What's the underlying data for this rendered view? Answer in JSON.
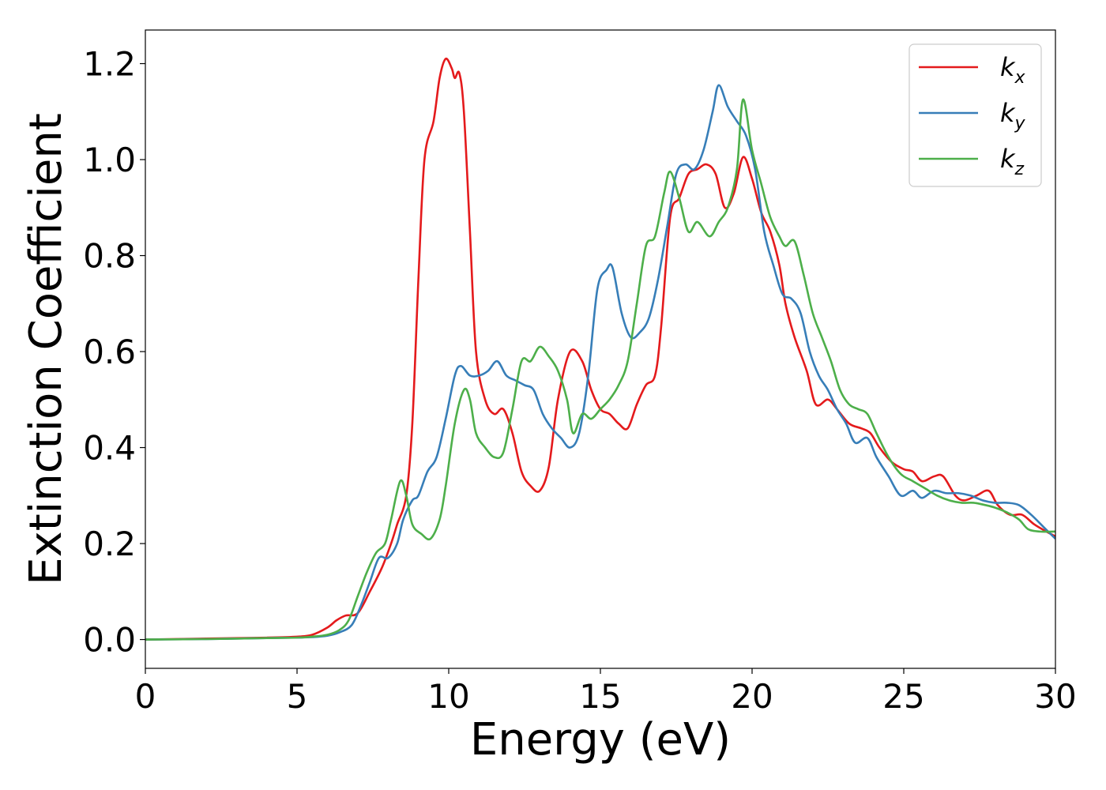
{
  "chart_data": {
    "type": "line",
    "xlabel": "Energy (eV)",
    "ylabel": "Extinction Coefficient",
    "xlim": [
      0,
      30
    ],
    "ylim": [
      -0.06,
      1.27
    ],
    "x_ticks": [
      0,
      5,
      10,
      15,
      20,
      25,
      30
    ],
    "y_ticks": [
      0.0,
      0.2,
      0.4,
      0.6,
      0.8,
      1.0,
      1.2
    ],
    "x_tick_labels": [
      "0",
      "5",
      "10",
      "15",
      "20",
      "25",
      "30"
    ],
    "y_tick_labels": [
      "0.0",
      "0.2",
      "0.4",
      "0.6",
      "0.8",
      "1.0",
      "1.2"
    ],
    "grid": false,
    "legend_position": "top-right",
    "series": [
      {
        "name": "k",
        "subscript": "x",
        "color": "#e41a1c",
        "points": [
          [
            0,
            0
          ],
          [
            2,
            0.002
          ],
          [
            4,
            0.004
          ],
          [
            5,
            0.006
          ],
          [
            5.5,
            0.01
          ],
          [
            6,
            0.025
          ],
          [
            6.3,
            0.04
          ],
          [
            6.6,
            0.05
          ],
          [
            7,
            0.055
          ],
          [
            7.4,
            0.1
          ],
          [
            7.8,
            0.15
          ],
          [
            8.1,
            0.2
          ],
          [
            8.3,
            0.24
          ],
          [
            8.6,
            0.3
          ],
          [
            8.8,
            0.45
          ],
          [
            9.0,
            0.75
          ],
          [
            9.2,
            1.0
          ],
          [
            9.5,
            1.08
          ],
          [
            9.7,
            1.17
          ],
          [
            9.9,
            1.21
          ],
          [
            10.1,
            1.19
          ],
          [
            10.2,
            1.17
          ],
          [
            10.35,
            1.18
          ],
          [
            10.5,
            1.1
          ],
          [
            10.7,
            0.85
          ],
          [
            10.9,
            0.6
          ],
          [
            11.2,
            0.5
          ],
          [
            11.5,
            0.47
          ],
          [
            11.8,
            0.48
          ],
          [
            12.1,
            0.43
          ],
          [
            12.4,
            0.35
          ],
          [
            12.7,
            0.32
          ],
          [
            13.0,
            0.31
          ],
          [
            13.3,
            0.36
          ],
          [
            13.6,
            0.5
          ],
          [
            14.0,
            0.6
          ],
          [
            14.4,
            0.58
          ],
          [
            14.7,
            0.52
          ],
          [
            15.0,
            0.48
          ],
          [
            15.3,
            0.47
          ],
          [
            15.6,
            0.45
          ],
          [
            15.9,
            0.44
          ],
          [
            16.2,
            0.49
          ],
          [
            16.5,
            0.53
          ],
          [
            16.8,
            0.55
          ],
          [
            17.0,
            0.65
          ],
          [
            17.3,
            0.88
          ],
          [
            17.6,
            0.92
          ],
          [
            17.9,
            0.97
          ],
          [
            18.2,
            0.98
          ],
          [
            18.5,
            0.99
          ],
          [
            18.8,
            0.97
          ],
          [
            19.1,
            0.9
          ],
          [
            19.4,
            0.93
          ],
          [
            19.7,
            1.005
          ],
          [
            20.0,
            0.96
          ],
          [
            20.3,
            0.89
          ],
          [
            20.6,
            0.85
          ],
          [
            20.9,
            0.78
          ],
          [
            21.1,
            0.7
          ],
          [
            21.4,
            0.63
          ],
          [
            21.8,
            0.56
          ],
          [
            22.1,
            0.49
          ],
          [
            22.5,
            0.5
          ],
          [
            22.8,
            0.48
          ],
          [
            23.2,
            0.45
          ],
          [
            23.6,
            0.44
          ],
          [
            23.9,
            0.43
          ],
          [
            24.2,
            0.4
          ],
          [
            24.6,
            0.37
          ],
          [
            25.0,
            0.355
          ],
          [
            25.3,
            0.35
          ],
          [
            25.6,
            0.33
          ],
          [
            26.0,
            0.34
          ],
          [
            26.3,
            0.34
          ],
          [
            26.7,
            0.3
          ],
          [
            27.0,
            0.29
          ],
          [
            27.4,
            0.3
          ],
          [
            27.8,
            0.31
          ],
          [
            28.1,
            0.28
          ],
          [
            28.5,
            0.26
          ],
          [
            28.9,
            0.26
          ],
          [
            29.3,
            0.24
          ],
          [
            29.7,
            0.225
          ],
          [
            30,
            0.215
          ]
        ]
      },
      {
        "name": "k",
        "subscript": "y",
        "color": "#377eb8",
        "points": [
          [
            0,
            0
          ],
          [
            2,
            0.001
          ],
          [
            4,
            0.003
          ],
          [
            5,
            0.004
          ],
          [
            5.5,
            0.005
          ],
          [
            6,
            0.008
          ],
          [
            6.4,
            0.015
          ],
          [
            6.8,
            0.03
          ],
          [
            7.1,
            0.07
          ],
          [
            7.4,
            0.12
          ],
          [
            7.7,
            0.17
          ],
          [
            8.0,
            0.17
          ],
          [
            8.3,
            0.2
          ],
          [
            8.5,
            0.25
          ],
          [
            8.8,
            0.29
          ],
          [
            9.0,
            0.3
          ],
          [
            9.3,
            0.35
          ],
          [
            9.6,
            0.38
          ],
          [
            9.9,
            0.46
          ],
          [
            10.2,
            0.55
          ],
          [
            10.4,
            0.57
          ],
          [
            10.7,
            0.55
          ],
          [
            11.0,
            0.55
          ],
          [
            11.3,
            0.56
          ],
          [
            11.6,
            0.58
          ],
          [
            11.9,
            0.55
          ],
          [
            12.2,
            0.54
          ],
          [
            12.5,
            0.53
          ],
          [
            12.8,
            0.52
          ],
          [
            13.1,
            0.47
          ],
          [
            13.4,
            0.44
          ],
          [
            13.7,
            0.42
          ],
          [
            14.0,
            0.4
          ],
          [
            14.3,
            0.43
          ],
          [
            14.6,
            0.55
          ],
          [
            14.9,
            0.73
          ],
          [
            15.2,
            0.77
          ],
          [
            15.4,
            0.775
          ],
          [
            15.7,
            0.68
          ],
          [
            16.0,
            0.63
          ],
          [
            16.3,
            0.64
          ],
          [
            16.6,
            0.67
          ],
          [
            16.9,
            0.75
          ],
          [
            17.2,
            0.86
          ],
          [
            17.5,
            0.97
          ],
          [
            17.8,
            0.99
          ],
          [
            18.1,
            0.98
          ],
          [
            18.4,
            1.02
          ],
          [
            18.7,
            1.1
          ],
          [
            18.9,
            1.155
          ],
          [
            19.2,
            1.11
          ],
          [
            19.5,
            1.08
          ],
          [
            19.8,
            1.05
          ],
          [
            20.1,
            0.98
          ],
          [
            20.4,
            0.85
          ],
          [
            20.7,
            0.78
          ],
          [
            21.0,
            0.72
          ],
          [
            21.3,
            0.71
          ],
          [
            21.6,
            0.68
          ],
          [
            21.9,
            0.6
          ],
          [
            22.2,
            0.55
          ],
          [
            22.5,
            0.52
          ],
          [
            22.8,
            0.48
          ],
          [
            23.1,
            0.45
          ],
          [
            23.4,
            0.41
          ],
          [
            23.8,
            0.42
          ],
          [
            24.1,
            0.38
          ],
          [
            24.5,
            0.34
          ],
          [
            24.9,
            0.3
          ],
          [
            25.3,
            0.31
          ],
          [
            25.6,
            0.295
          ],
          [
            26.0,
            0.31
          ],
          [
            26.4,
            0.305
          ],
          [
            26.8,
            0.305
          ],
          [
            27.2,
            0.3
          ],
          [
            27.6,
            0.29
          ],
          [
            28.0,
            0.285
          ],
          [
            28.4,
            0.285
          ],
          [
            28.8,
            0.28
          ],
          [
            29.2,
            0.26
          ],
          [
            29.6,
            0.235
          ],
          [
            30,
            0.21
          ]
        ]
      },
      {
        "name": "k",
        "subscript": "z",
        "color": "#4daf4a",
        "points": [
          [
            0,
            0
          ],
          [
            2,
            0.001
          ],
          [
            4,
            0.003
          ],
          [
            5,
            0.004
          ],
          [
            5.5,
            0.006
          ],
          [
            6,
            0.01
          ],
          [
            6.4,
            0.02
          ],
          [
            6.7,
            0.04
          ],
          [
            7.0,
            0.09
          ],
          [
            7.3,
            0.14
          ],
          [
            7.6,
            0.18
          ],
          [
            7.9,
            0.2
          ],
          [
            8.1,
            0.25
          ],
          [
            8.4,
            0.33
          ],
          [
            8.6,
            0.3
          ],
          [
            8.8,
            0.24
          ],
          [
            9.1,
            0.22
          ],
          [
            9.4,
            0.21
          ],
          [
            9.7,
            0.25
          ],
          [
            9.9,
            0.32
          ],
          [
            10.2,
            0.45
          ],
          [
            10.5,
            0.52
          ],
          [
            10.7,
            0.5
          ],
          [
            10.9,
            0.43
          ],
          [
            11.2,
            0.4
          ],
          [
            11.5,
            0.38
          ],
          [
            11.8,
            0.39
          ],
          [
            12.1,
            0.48
          ],
          [
            12.4,
            0.58
          ],
          [
            12.7,
            0.58
          ],
          [
            13.0,
            0.61
          ],
          [
            13.3,
            0.59
          ],
          [
            13.6,
            0.56
          ],
          [
            13.9,
            0.5
          ],
          [
            14.1,
            0.43
          ],
          [
            14.4,
            0.47
          ],
          [
            14.7,
            0.46
          ],
          [
            15.0,
            0.48
          ],
          [
            15.3,
            0.5
          ],
          [
            15.6,
            0.53
          ],
          [
            15.9,
            0.58
          ],
          [
            16.2,
            0.7
          ],
          [
            16.5,
            0.82
          ],
          [
            16.8,
            0.84
          ],
          [
            17.1,
            0.93
          ],
          [
            17.3,
            0.975
          ],
          [
            17.6,
            0.92
          ],
          [
            17.9,
            0.85
          ],
          [
            18.2,
            0.87
          ],
          [
            18.6,
            0.84
          ],
          [
            18.9,
            0.87
          ],
          [
            19.2,
            0.9
          ],
          [
            19.5,
            0.98
          ],
          [
            19.7,
            1.125
          ],
          [
            20.0,
            1.02
          ],
          [
            20.3,
            0.95
          ],
          [
            20.6,
            0.88
          ],
          [
            20.9,
            0.84
          ],
          [
            21.1,
            0.82
          ],
          [
            21.4,
            0.83
          ],
          [
            21.7,
            0.76
          ],
          [
            22.0,
            0.68
          ],
          [
            22.3,
            0.63
          ],
          [
            22.6,
            0.58
          ],
          [
            22.9,
            0.52
          ],
          [
            23.2,
            0.49
          ],
          [
            23.5,
            0.48
          ],
          [
            23.8,
            0.47
          ],
          [
            24.1,
            0.43
          ],
          [
            24.5,
            0.38
          ],
          [
            24.9,
            0.345
          ],
          [
            25.3,
            0.33
          ],
          [
            25.7,
            0.315
          ],
          [
            26.1,
            0.3
          ],
          [
            26.5,
            0.29
          ],
          [
            26.9,
            0.285
          ],
          [
            27.3,
            0.285
          ],
          [
            27.7,
            0.28
          ],
          [
            28.0,
            0.275
          ],
          [
            28.4,
            0.265
          ],
          [
            28.8,
            0.25
          ],
          [
            29.1,
            0.23
          ],
          [
            29.5,
            0.225
          ],
          [
            30,
            0.225
          ]
        ]
      }
    ]
  }
}
